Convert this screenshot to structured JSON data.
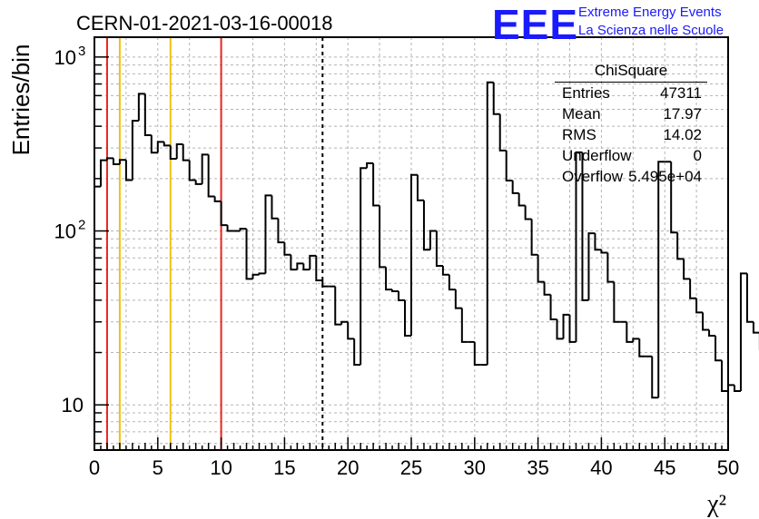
{
  "header": {
    "run_id": "CERN-01-2021-03-16-00018",
    "logo_mark": "EEE",
    "logo_line1": "Extreme Energy Events",
    "logo_line2": "La Scienza nelle Scuole"
  },
  "stats": {
    "title": "ChiSquare",
    "rows": [
      {
        "key": "Entries",
        "value": "47311"
      },
      {
        "key": "Mean",
        "value": "17.97"
      },
      {
        "key": "RMS",
        "value": "14.02"
      },
      {
        "key": "Underflow",
        "value": "0"
      },
      {
        "key": "Overflow",
        "value": "5.495e+04"
      }
    ]
  },
  "chart_data": {
    "type": "histogram",
    "title": "CERN-01-2021-03-16-00018",
    "xlabel": "χ²",
    "ylabel": "Entries/bin",
    "xlim": [
      0,
      50
    ],
    "ylim": [
      5.5,
      1300
    ],
    "y_scale": "log",
    "grid": true,
    "legend_position": "top-right",
    "x_ticks": [
      "0",
      "5",
      "10",
      "15",
      "20",
      "25",
      "30",
      "35",
      "40",
      "45",
      "50"
    ],
    "y_ticks": [
      {
        "value": 10,
        "label": "10"
      },
      {
        "value": 100,
        "label": "10^2"
      },
      {
        "value": 1000,
        "label": "10^3"
      }
    ],
    "bin_width": 0.5,
    "series": [
      {
        "values": [
          180,
          255,
          262,
          242,
          256,
          196,
          430,
          615,
          355,
          282,
          325,
          310,
          260,
          315,
          255,
          196,
          186,
          275,
          158,
          148,
          108,
          100,
          100,
          103,
          53,
          56,
          57,
          160,
          118,
          86,
          73,
          60,
          65,
          60,
          72,
          52,
          48,
          48,
          29,
          30,
          24,
          17,
          230,
          245,
          140,
          62,
          46,
          45,
          40,
          25,
          210,
          150,
          78,
          100,
          63,
          56,
          46,
          36,
          23,
          23,
          17,
          17,
          715,
          470,
          290,
          195,
          165,
          140,
          117,
          73,
          51,
          43,
          31,
          24,
          33,
          23,
          283,
          40,
          97,
          78,
          75,
          51,
          30,
          30,
          23,
          24,
          19,
          19,
          11,
          250,
          250,
          98,
          69,
          53,
          41,
          34,
          27,
          25,
          18,
          12,
          13,
          12,
          57,
          30,
          26,
          21
        ]
      }
    ],
    "vertical_markers": [
      {
        "x": 1,
        "color": "#e8261e",
        "style": "solid"
      },
      {
        "x": 2,
        "color": "#f2c012",
        "style": "solid"
      },
      {
        "x": 6,
        "color": "#f2c012",
        "style": "solid"
      },
      {
        "x": 10,
        "color": "#e8261e",
        "style": "solid"
      },
      {
        "x": 18,
        "color": "#000000",
        "style": "dashed"
      }
    ],
    "line_color": "#000000",
    "grid_color": "#b4b4b4"
  }
}
